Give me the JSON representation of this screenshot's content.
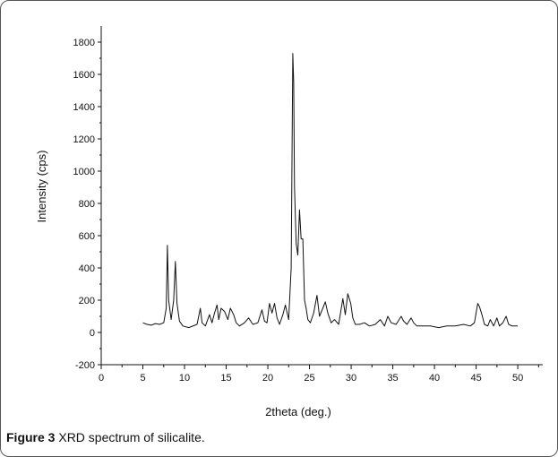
{
  "caption": {
    "label": "Figure 3",
    "text": "XRD spectrum of silicalite."
  },
  "colors": {
    "line": "#111111",
    "axis": "#111111",
    "frame": "#555555"
  },
  "chart_data": {
    "type": "line",
    "title": "",
    "xlabel": "2theta (deg.)",
    "ylabel": "Intensity (cps)",
    "xlim": [
      0,
      53
    ],
    "ylim": [
      -200,
      1900
    ],
    "x_ticks": [
      0,
      5,
      10,
      15,
      20,
      25,
      30,
      35,
      40,
      45,
      50
    ],
    "y_ticks": [
      -200,
      0,
      200,
      400,
      600,
      800,
      1000,
      1200,
      1400,
      1600,
      1800
    ],
    "grid": false,
    "legend": "none",
    "series": [
      {
        "x": [
          5.0,
          5.5,
          6.0,
          6.5,
          7.0,
          7.5,
          7.8,
          7.95,
          8.1,
          8.4,
          8.7,
          8.9,
          9.1,
          9.4,
          9.8,
          10.5,
          11.5,
          11.9,
          12.1,
          12.5,
          13.0,
          13.3,
          13.6,
          13.9,
          14.1,
          14.4,
          14.8,
          15.2,
          15.5,
          15.9,
          16.2,
          16.6,
          17.2,
          17.7,
          18.2,
          18.8,
          19.3,
          19.6,
          19.9,
          20.2,
          20.5,
          20.8,
          21.1,
          21.4,
          21.8,
          22.1,
          22.5,
          22.8,
          23.0,
          23.1,
          23.2,
          23.4,
          23.6,
          23.8,
          24.0,
          24.2,
          24.4,
          24.6,
          24.8,
          25.1,
          25.5,
          25.9,
          26.2,
          26.6,
          26.9,
          27.2,
          27.6,
          28.0,
          28.5,
          29.0,
          29.3,
          29.6,
          29.95,
          30.2,
          30.5,
          31.0,
          31.6,
          32.2,
          32.9,
          33.5,
          34.0,
          34.4,
          34.8,
          35.4,
          36.0,
          36.3,
          36.7,
          37.2,
          37.5,
          37.9,
          38.5,
          39.5,
          40.5,
          41.5,
          42.5,
          43.5,
          44.3,
          44.8,
          45.2,
          45.4,
          45.7,
          46.0,
          46.4,
          46.7,
          47.1,
          47.5,
          47.8,
          48.2,
          48.6,
          48.9,
          49.3,
          50.0
        ],
        "y": [
          60,
          50,
          45,
          55,
          50,
          60,
          150,
          540,
          200,
          80,
          200,
          440,
          180,
          70,
          40,
          30,
          50,
          150,
          60,
          40,
          110,
          60,
          120,
          170,
          80,
          150,
          130,
          80,
          150,
          110,
          60,
          40,
          60,
          90,
          50,
          60,
          140,
          70,
          60,
          180,
          120,
          180,
          90,
          50,
          110,
          170,
          80,
          400,
          1730,
          1550,
          900,
          550,
          480,
          760,
          580,
          580,
          200,
          150,
          80,
          60,
          120,
          230,
          100,
          150,
          190,
          120,
          60,
          80,
          50,
          210,
          110,
          240,
          180,
          90,
          50,
          50,
          60,
          40,
          50,
          80,
          40,
          100,
          60,
          50,
          100,
          70,
          50,
          90,
          60,
          40,
          40,
          40,
          30,
          40,
          40,
          50,
          40,
          60,
          180,
          160,
          110,
          50,
          40,
          80,
          40,
          90,
          40,
          60,
          100,
          50,
          40,
          40
        ]
      }
    ]
  }
}
